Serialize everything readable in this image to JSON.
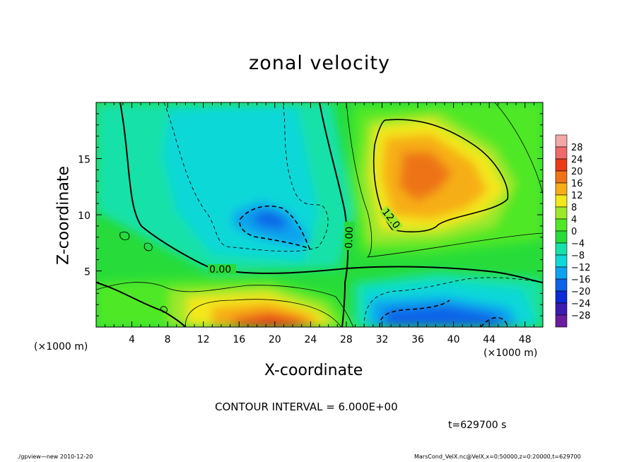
{
  "chart_data": {
    "type": "heatmap",
    "title": "zonal velocity",
    "xlabel": "X-coordinate",
    "ylabel": "Z-coordinate",
    "x_unit": "(×1000 m)",
    "y_unit": "(×1000 m)",
    "xlim": [
      0,
      50
    ],
    "ylim": [
      0,
      20
    ],
    "x_ticks": [
      4,
      8,
      12,
      16,
      20,
      24,
      28,
      32,
      36,
      40,
      44,
      48
    ],
    "y_ticks": [
      5,
      10,
      15
    ],
    "colorbar": {
      "labels": [
        "28",
        "24",
        "20",
        "16",
        "12",
        "8",
        "4",
        "0",
        "−4",
        "−8",
        "−12",
        "−16",
        "−20",
        "−24",
        "−28"
      ],
      "levels": [
        32,
        28,
        24,
        20,
        16,
        12,
        8,
        4,
        0,
        -4,
        -8,
        -12,
        -16,
        -20,
        -24,
        -28,
        -32
      ]
    },
    "contour_labels": [
      "0.00",
      "0.00",
      "12.0"
    ],
    "features": [
      {
        "name": "upper positive jet",
        "x": 36,
        "z": 13,
        "value": 18
      },
      {
        "name": "upper negative cell",
        "x": 20,
        "z": 9.5,
        "value": -11
      },
      {
        "name": "near-surface positive jet",
        "x": 20,
        "z": 0.5,
        "value": 24
      },
      {
        "name": "near-surface negative jet",
        "x": 36,
        "z": 0.5,
        "value": -16
      }
    ]
  },
  "annotations": {
    "contour_interval": "CONTOUR INTERVAL = 6.000E+00",
    "time": "t=629700 s"
  },
  "footer": {
    "left": "./gpview—new  2010-12-20",
    "right": "MarsCond_VelX.nc@VelX,x=0:50000,z=0:20000,t=629700"
  },
  "colors": {
    "c_m28": "#6a1d9c",
    "c_m24": "#3b1bb0",
    "c_m20": "#0c2ad6",
    "c_m16": "#0d63e8",
    "c_m12": "#0fa3ee",
    "c_m8": "#0fd8d8",
    "c_m4": "#16e1a8",
    "c_0": "#27dc3a",
    "c_4": "#4fe827",
    "c_8": "#9ee82a",
    "c_12": "#f3e81b",
    "c_16": "#f6ae16",
    "c_20": "#ee7316",
    "c_24": "#ea3b18",
    "c_28": "#f06a6a",
    "c_32": "#f3a8a8"
  }
}
